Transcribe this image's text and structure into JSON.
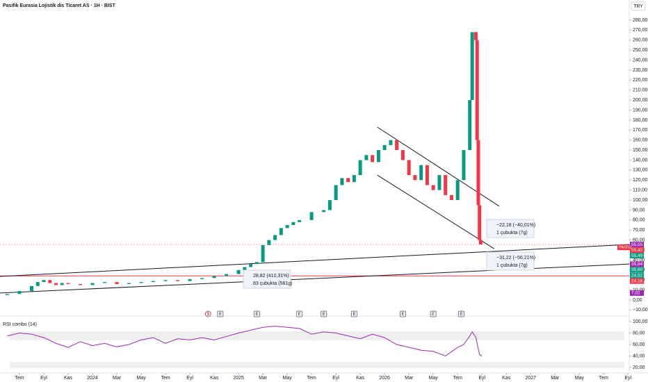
{
  "chart_data": {
    "type": "candlestick",
    "title": "Pasifik Eurasia Lojistik dis Ticaret AS · 1H · BIST",
    "currency": "TRY",
    "xlim": [
      -1.6,
      50.1
    ],
    "xticks": [
      {
        "value": 0,
        "label": "Tem"
      },
      {
        "value": 2,
        "label": "Eyl"
      },
      {
        "value": 4,
        "label": "Kas"
      },
      {
        "value": 6,
        "label": "2024"
      },
      {
        "value": 8,
        "label": "Mar"
      },
      {
        "value": 10,
        "label": "May"
      },
      {
        "value": 12,
        "label": "Tem"
      },
      {
        "value": 14,
        "label": "Eyl"
      },
      {
        "value": 16,
        "label": "Kas"
      },
      {
        "value": 18,
        "label": "2025"
      },
      {
        "value": 20,
        "label": "Mar"
      },
      {
        "value": 22,
        "label": "May"
      },
      {
        "value": 24,
        "label": "Tem"
      },
      {
        "value": 26,
        "label": "Eyl"
      },
      {
        "value": 28,
        "label": "Kas"
      },
      {
        "value": 30,
        "label": "2026"
      },
      {
        "value": 32,
        "label": "Mar"
      },
      {
        "value": 34,
        "label": "May"
      },
      {
        "value": 36,
        "label": "Tem"
      },
      {
        "value": 38,
        "label": "Eyl"
      },
      {
        "value": 40,
        "label": "Kas"
      },
      {
        "value": 42,
        "label": "2027"
      },
      {
        "value": 44,
        "label": "Mar"
      },
      {
        "value": 46,
        "label": "May"
      },
      {
        "value": 48,
        "label": "Tem"
      },
      {
        "value": 50,
        "label": "Eyl"
      }
    ],
    "ylim": [
      -13.9,
      293.2
    ],
    "yticks": [
      {
        "value": -10,
        "label": "−10,00"
      },
      {
        "value": 0,
        "label": "0,00"
      },
      {
        "value": 10,
        "label": "10,00"
      },
      {
        "value": 20,
        "label": "20,00"
      },
      {
        "value": 30,
        "label": "30,00"
      },
      {
        "value": 40,
        "label": "40,00"
      },
      {
        "value": 50,
        "label": "50,00"
      },
      {
        "value": 60,
        "label": "60,00"
      },
      {
        "value": 70,
        "label": "70,00"
      },
      {
        "value": 80,
        "label": "80,00"
      },
      {
        "value": 90,
        "label": "90,00"
      },
      {
        "value": 100,
        "label": "100,00"
      },
      {
        "value": 110,
        "label": "110,00"
      },
      {
        "value": 120,
        "label": "120,00"
      },
      {
        "value": 130,
        "label": "130,00"
      },
      {
        "value": 140,
        "label": "140,00"
      },
      {
        "value": 150,
        "label": "150,00"
      },
      {
        "value": 160,
        "label": "160,00"
      },
      {
        "value": 170,
        "label": "170,00"
      },
      {
        "value": 180,
        "label": "180,00"
      },
      {
        "value": 190,
        "label": "190,00"
      },
      {
        "value": 200,
        "label": "200,00"
      },
      {
        "value": 210,
        "label": "210,00"
      },
      {
        "value": 220,
        "label": "220,00"
      },
      {
        "value": 230,
        "label": "230,00"
      },
      {
        "value": 240,
        "label": "240,00"
      },
      {
        "value": 250,
        "label": "250,00"
      },
      {
        "value": 260,
        "label": "260,00"
      },
      {
        "value": 270,
        "label": "270,00"
      },
      {
        "value": 280,
        "label": "280,00"
      }
    ],
    "x": [
      -1,
      0,
      1,
      1.5,
      2,
      2.5,
      3,
      3.5,
      4,
      5,
      6,
      7,
      8,
      9,
      10,
      11,
      12,
      13,
      14,
      15,
      16,
      17,
      18,
      18.5,
      19,
      19.5,
      20,
      20.5,
      21,
      21.5,
      22,
      22.5,
      23,
      24,
      25,
      25.5,
      26,
      26.5,
      27,
      27.5,
      28,
      28.5,
      29,
      29.5,
      30,
      30.5,
      31,
      31.5,
      32,
      32.5,
      33,
      33.5,
      34,
      34.5,
      35,
      35.5,
      36,
      36.5,
      37,
      37.2,
      37.5,
      37.6,
      37.7,
      37.8,
      37.9
    ],
    "open": [
      5,
      6,
      9,
      14,
      18,
      20,
      17,
      15,
      17,
      16,
      15,
      17,
      18,
      16,
      17,
      18,
      19,
      20,
      19,
      21,
      22,
      24,
      26,
      30,
      33,
      36,
      38,
      55,
      60,
      65,
      72,
      75,
      78,
      80,
      88,
      90,
      100,
      115,
      122,
      118,
      125,
      140,
      145,
      138,
      150,
      155,
      160,
      150,
      140,
      125,
      120,
      135,
      115,
      110,
      125,
      105,
      100,
      120,
      150,
      200,
      268,
      260,
      160,
      95,
      60
    ],
    "close": [
      6,
      9,
      14,
      18,
      20,
      17,
      15,
      17,
      16,
      15,
      17,
      18,
      16,
      17,
      18,
      19,
      20,
      19,
      21,
      22,
      24,
      26,
      30,
      33,
      36,
      38,
      55,
      60,
      65,
      72,
      75,
      78,
      80,
      88,
      90,
      100,
      115,
      122,
      118,
      125,
      140,
      145,
      138,
      150,
      155,
      160,
      150,
      140,
      125,
      120,
      135,
      115,
      110,
      125,
      105,
      100,
      120,
      150,
      200,
      268,
      260,
      160,
      95,
      60,
      55.55
    ],
    "up_color": "#089981",
    "down_color": "#f23645",
    "trendlines": [
      {
        "from": [
          -1.6,
          7
        ],
        "to": [
          50.1,
          36
        ],
        "color": "#131722"
      },
      {
        "from": [
          -1.6,
          23.6
        ],
        "to": [
          50.1,
          55.6
        ],
        "color": "#131722"
      },
      {
        "from": [
          29.4,
          173
        ],
        "to": [
          39.4,
          94
        ],
        "color": "#131722"
      },
      {
        "from": [
          29.4,
          125
        ],
        "to": [
          39,
          51.4
        ],
        "color": "#131722"
      }
    ],
    "hlines": [
      {
        "value": 55.55,
        "color": "#f7a1a8"
      },
      {
        "value": 24.18,
        "color": "#f23645"
      }
    ],
    "badges": [
      {
        "value": 55.55,
        "label": "55,55",
        "color": "#9c27b0"
      },
      {
        "value": 55.45,
        "label": "55,45",
        "color": "#f23645"
      },
      {
        "value": 55.49,
        "label": "55,49",
        "color": "#089981"
      },
      {
        "value": 35.84,
        "label": "35,84",
        "color": "#9c27b0"
      },
      {
        "value": 35.6,
        "label": "35,60",
        "color": "#089981"
      },
      {
        "value": 24.52,
        "label": "24,52",
        "color": "#089981"
      },
      {
        "value": 24.18,
        "label": "24,18",
        "color": "#f23645"
      },
      {
        "value": 7.02,
        "label": "7,02",
        "color": "#9c27b0"
      }
    ],
    "symbol_label": "PASEU",
    "measurements": [
      {
        "change": "−22,18 (−40,01%)",
        "bars": "1 çubukta (7g)"
      },
      {
        "change": "−31,22 (−56,21%)",
        "bars": "1 çubukta (7g)"
      },
      {
        "change": "28,82 (410,31%)",
        "bars": "83 çubukta (581g)"
      }
    ],
    "events": [
      {
        "x": 15.5,
        "label": "S"
      },
      {
        "x": 16.5,
        "label": "E"
      },
      {
        "x": 19.5,
        "label": "E"
      },
      {
        "x": 23,
        "label": "E"
      },
      {
        "x": 25,
        "label": "E"
      },
      {
        "x": 27.5,
        "label": "E"
      },
      {
        "x": 31.5,
        "label": "E"
      },
      {
        "x": 34,
        "label": "E"
      },
      {
        "x": 36.3,
        "label": "E"
      }
    ],
    "rsi": {
      "title": "RSI combo (14)",
      "color": "#9c27b0",
      "ylim": [
        10.3,
        109.7
      ],
      "yticks": [
        {
          "value": 20,
          "label": "20,00"
        },
        {
          "value": 40,
          "label": "40,00"
        },
        {
          "value": 60,
          "label": "60,00"
        },
        {
          "value": 80,
          "label": "80,00"
        },
        {
          "value": 100,
          "label": "100,00"
        }
      ],
      "x": [
        -1,
        0,
        1,
        2,
        3,
        4,
        5,
        6,
        7,
        8,
        9,
        10,
        11,
        12,
        13,
        14,
        15,
        16,
        17,
        18,
        19,
        20,
        21,
        22,
        23,
        24,
        25,
        26,
        27,
        28,
        29,
        30,
        31,
        32,
        33,
        34,
        35,
        36,
        36.5,
        37,
        37.2,
        37.5,
        37.8,
        38
      ],
      "values": [
        75,
        80,
        78,
        72,
        62,
        55,
        65,
        58,
        62,
        56,
        60,
        68,
        72,
        62,
        70,
        68,
        72,
        68,
        74,
        80,
        85,
        90,
        92,
        90,
        88,
        78,
        82,
        80,
        75,
        70,
        78,
        72,
        60,
        55,
        50,
        48,
        40,
        55,
        60,
        75,
        82,
        72,
        42,
        40
      ]
    }
  }
}
